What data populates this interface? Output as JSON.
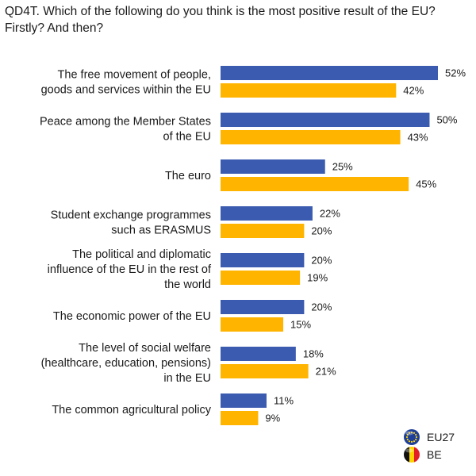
{
  "title": "QD4T. Which of the following do you think is the most positive result of the EU?\nFirstly? And then?",
  "chart_data": {
    "type": "bar",
    "orientation": "horizontal",
    "title": "QD4T. Which of the following do you think is the most positive result of the EU?\nFirstly? And then?",
    "categories": [
      [
        "The free movement of people,",
        "goods and services within the EU"
      ],
      [
        "Peace among the Member States",
        "of the EU"
      ],
      [
        "The euro"
      ],
      [
        "Student exchange programmes",
        "such as ERASMUS"
      ],
      [
        "The political and diplomatic",
        "influence of the EU in the rest of",
        "the world"
      ],
      [
        "The economic power of the EU"
      ],
      [
        "The level of social welfare",
        "(healthcare, education, pensions)",
        "in the EU"
      ],
      [
        "The common agricultural policy"
      ]
    ],
    "series": [
      {
        "name": "EU27",
        "color": "#3a5bb0",
        "values": [
          52,
          50,
          25,
          22,
          20,
          20,
          18,
          11
        ]
      },
      {
        "name": "BE",
        "color": "#ffb400",
        "values": [
          42,
          43,
          45,
          20,
          19,
          15,
          21,
          9
        ]
      }
    ],
    "value_suffix": "%",
    "xlim": [
      0,
      55
    ],
    "grid": false,
    "legend_position": "bottom-right",
    "legend_icons": [
      "eu-flag-icon",
      "belgium-flag-icon"
    ]
  }
}
